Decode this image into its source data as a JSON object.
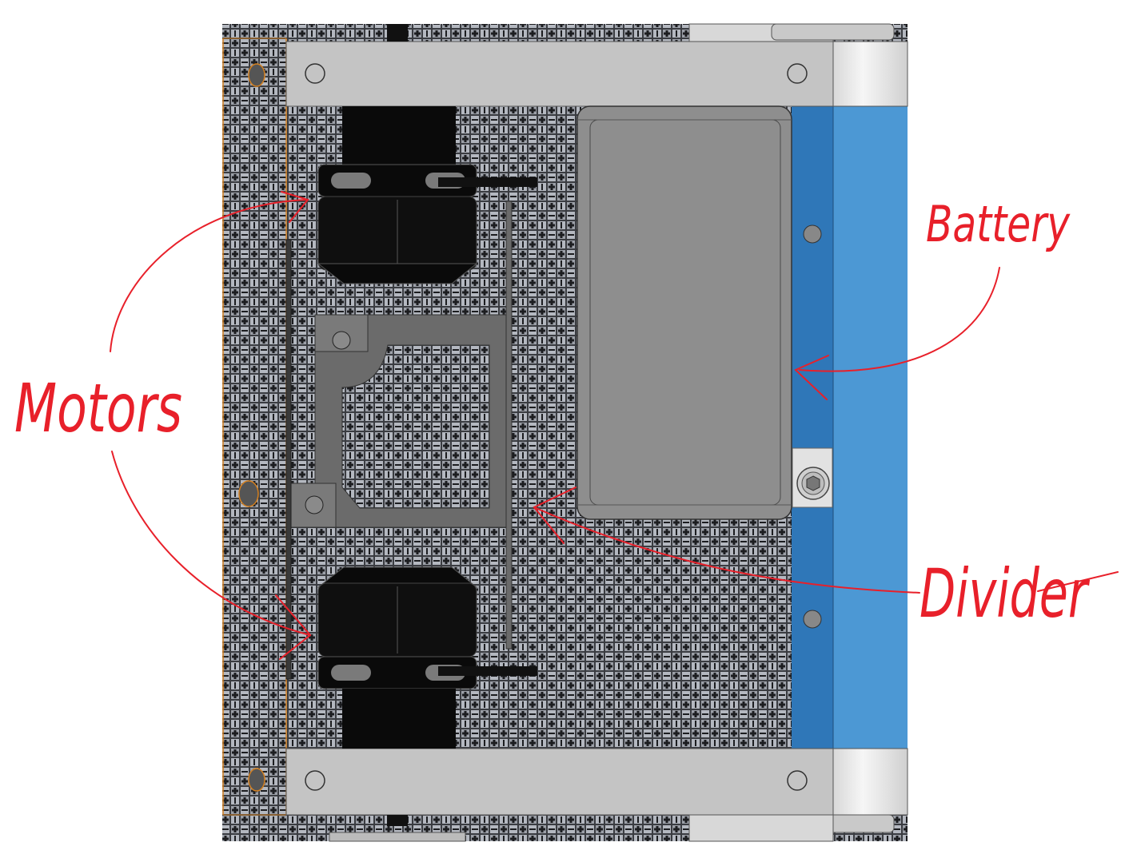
{
  "labels": {
    "motors": "Motors",
    "battery": "Battery",
    "divider": "Divider"
  },
  "colors": {
    "annotation": "#e8202a",
    "mesh_dark": "#2e2f33",
    "mesh_light": "#a9adb5",
    "frame_rail": "#c4c4c4",
    "plate": "#6b6b6b",
    "battery": "#8e8e8e",
    "wheel_dark": "#2f77b8",
    "wheel_light": "#4c98d4",
    "motor": "#0a0a0a"
  },
  "icons": [
    "bolt-hole-icon",
    "hex-socket-screw-icon",
    "annotation-arrow-icon"
  ]
}
